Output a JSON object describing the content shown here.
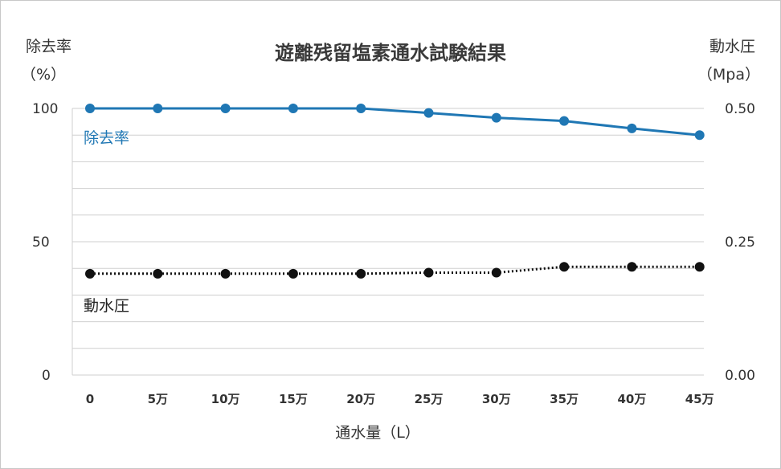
{
  "chart_data": {
    "type": "line",
    "title": "遊離残留塩素通水試験結果",
    "left_axis": {
      "head_line1": "除去率",
      "head_line2": "（%）",
      "ticks": [
        "100",
        "50",
        "0"
      ],
      "ylim": [
        0,
        100
      ]
    },
    "right_axis": {
      "head_line1": "動水圧",
      "head_line2": "（Mpa）",
      "ticks": [
        "0.50",
        "0.25",
        "0.00"
      ],
      "ylim": [
        0,
        0.5
      ]
    },
    "xlabel": "通水量（L）",
    "categories": [
      "0",
      "5万",
      "10万",
      "15万",
      "20万",
      "25万",
      "30万",
      "35万",
      "40万",
      "45万"
    ],
    "grid": true,
    "series": [
      {
        "name": "除去率",
        "axis": "left",
        "color": "#1f77b4",
        "style": "solid",
        "values": [
          100,
          100,
          100,
          100,
          100,
          98.3,
          96.5,
          95.3,
          92.5,
          90
        ]
      },
      {
        "name": "動水圧",
        "axis": "right",
        "color": "#111111",
        "style": "dotted",
        "values": [
          0.19,
          0.19,
          0.19,
          0.19,
          0.19,
          0.192,
          0.192,
          0.203,
          0.203,
          0.203
        ]
      }
    ]
  }
}
